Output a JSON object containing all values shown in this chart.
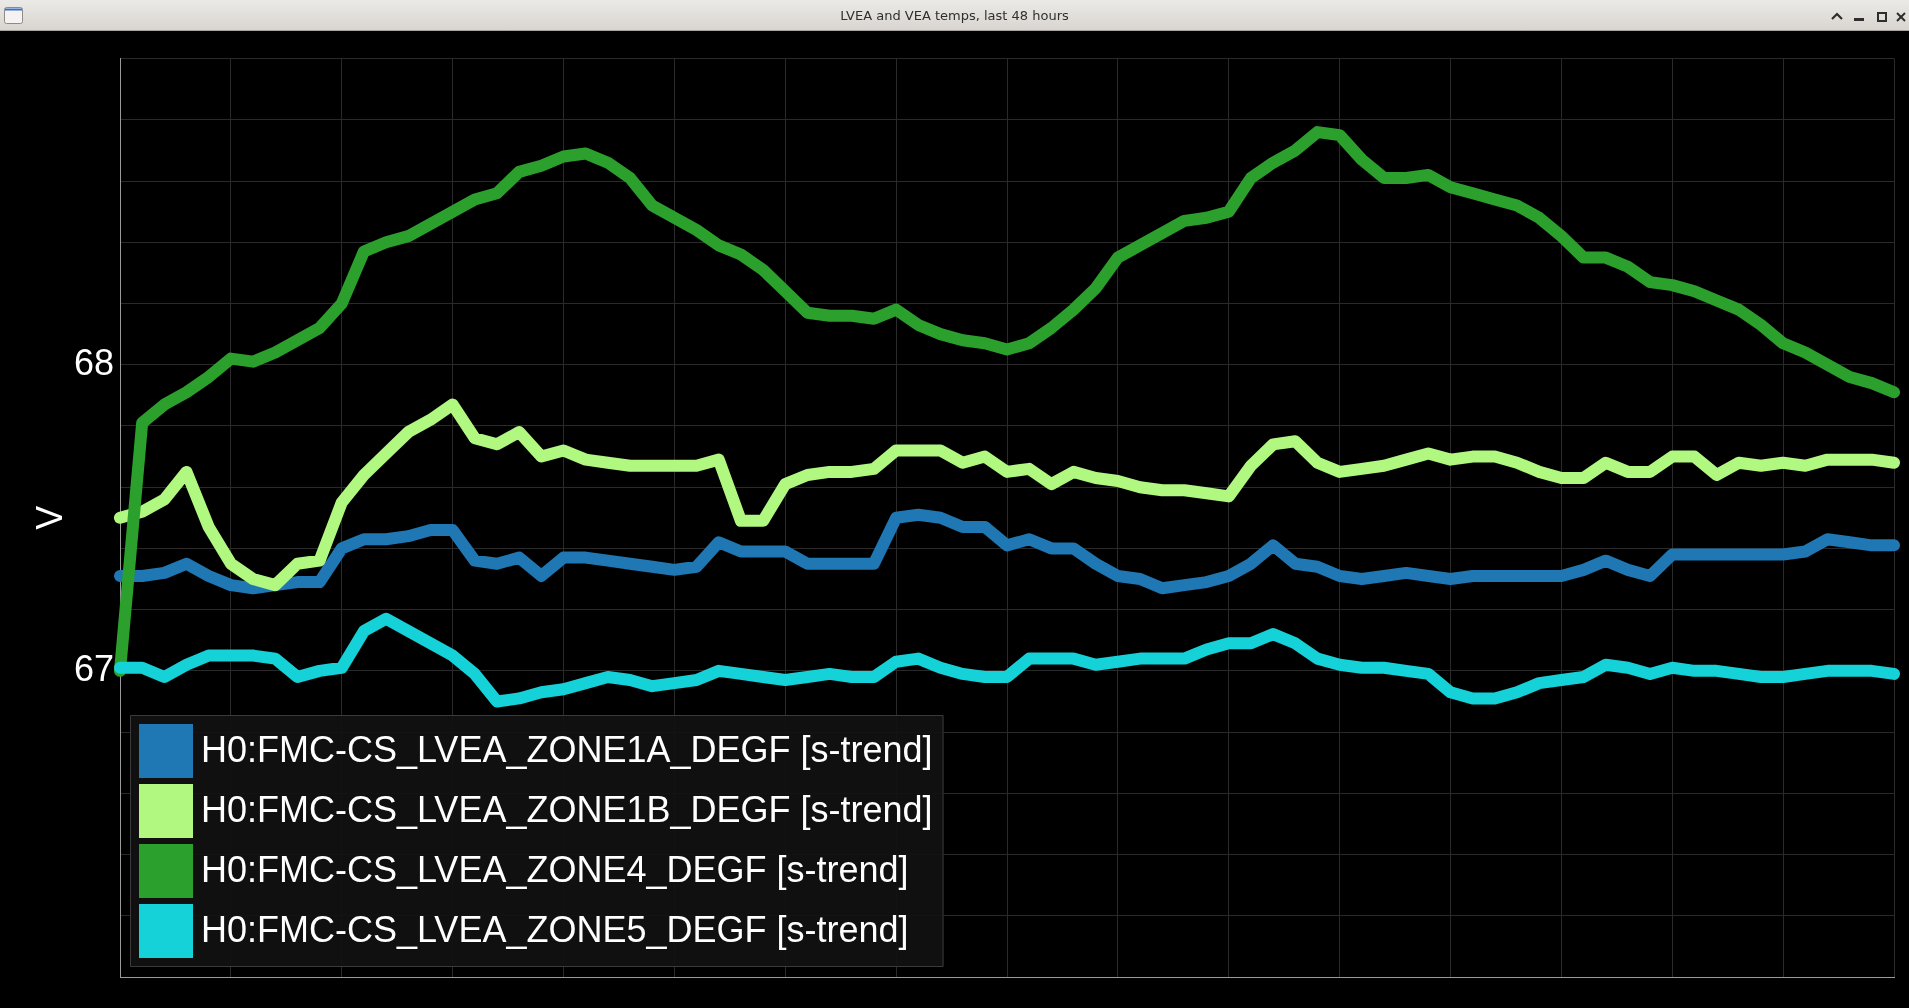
{
  "chart_data": {
    "type": "line",
    "title": "LVEA and VEA temps, last 48 hours",
    "ylabel": "V",
    "categories": [
      null,
      null,
      null,
      null,
      null,
      null,
      null,
      null,
      null,
      null,
      null,
      null,
      null,
      null,
      null,
      null,
      null,
      null,
      null,
      null,
      null,
      null,
      null,
      null,
      null,
      null,
      null,
      null,
      null,
      null,
      null,
      null,
      null,
      null,
      null,
      null,
      null,
      null,
      null,
      null,
      null,
      null,
      null,
      null,
      null,
      null,
      null,
      null,
      null,
      null,
      null,
      null,
      null,
      null,
      null,
      null,
      null,
      null,
      null,
      null,
      null,
      null,
      null,
      null,
      null,
      null,
      null,
      null,
      null,
      null,
      null,
      null,
      null,
      null,
      null,
      null,
      null,
      null,
      null,
      null,
      null
    ],
    "series": [
      {
        "name": "H0:FMC-CS_LVEA_ZONE1A_DEGF [s-trend]",
        "color": "#1f77b4",
        "values": [
          67.31,
          67.31,
          67.32,
          67.35,
          67.31,
          67.28,
          67.27,
          67.28,
          67.29,
          67.29,
          67.4,
          67.43,
          67.43,
          67.44,
          67.46,
          67.46,
          67.36,
          67.35,
          67.37,
          67.31,
          67.37,
          67.37,
          67.36,
          67.35,
          67.34,
          67.33,
          67.34,
          67.42,
          67.39,
          67.39,
          67.39,
          67.35,
          67.35,
          67.35,
          67.35,
          67.5,
          67.51,
          67.5,
          67.47,
          67.47,
          67.41,
          67.43,
          67.4,
          67.4,
          67.35,
          67.31,
          67.3,
          67.27,
          67.28,
          67.29,
          67.31,
          67.35,
          67.41,
          67.35,
          67.34,
          67.31,
          67.3,
          67.31,
          67.32,
          67.31,
          67.3,
          67.31,
          67.31,
          67.31,
          67.31,
          67.31,
          67.33,
          67.36,
          67.33,
          67.31,
          67.38,
          67.38,
          67.38,
          67.38,
          67.38,
          67.38,
          67.39,
          67.43,
          67.42,
          67.41,
          67.41
        ]
      },
      {
        "name": "H0:FMC-CS_LVEA_ZONE1B_DEGF [s-trend]",
        "color": "#b0f880",
        "values": [
          67.5,
          67.52,
          67.56,
          67.65,
          67.47,
          67.35,
          67.3,
          67.28,
          67.35,
          67.36,
          67.55,
          67.64,
          67.71,
          67.78,
          67.82,
          67.87,
          67.76,
          67.74,
          67.78,
          67.7,
          67.72,
          67.69,
          67.68,
          67.67,
          67.67,
          67.67,
          67.67,
          67.69,
          67.49,
          67.49,
          67.61,
          67.64,
          67.65,
          67.65,
          67.66,
          67.72,
          67.72,
          67.72,
          67.68,
          67.7,
          67.65,
          67.66,
          67.61,
          67.65,
          67.63,
          67.62,
          67.6,
          67.59,
          67.59,
          67.58,
          67.57,
          67.67,
          67.74,
          67.75,
          67.68,
          67.65,
          67.66,
          67.67,
          67.69,
          67.71,
          67.69,
          67.7,
          67.7,
          67.68,
          67.65,
          67.63,
          67.63,
          67.68,
          67.65,
          67.65,
          67.7,
          67.7,
          67.64,
          67.68,
          67.67,
          67.68,
          67.67,
          67.69,
          67.69,
          67.69,
          67.68
        ]
      },
      {
        "name": "H0:FMC-CS_LVEA_ZONE4_DEGF [s-trend]",
        "color": "#2ca02c",
        "values": [
          67.0,
          67.81,
          67.87,
          67.91,
          67.96,
          68.02,
          68.01,
          68.04,
          68.08,
          68.12,
          68.2,
          68.37,
          68.4,
          68.42,
          68.46,
          68.5,
          68.54,
          68.56,
          68.63,
          68.65,
          68.68,
          68.69,
          68.66,
          68.61,
          68.52,
          68.48,
          68.44,
          68.39,
          68.36,
          68.31,
          68.24,
          68.17,
          68.16,
          68.16,
          68.15,
          68.18,
          68.13,
          68.1,
          68.08,
          68.07,
          68.05,
          68.07,
          68.12,
          68.18,
          68.25,
          68.35,
          68.39,
          68.43,
          68.47,
          68.48,
          68.5,
          68.61,
          68.66,
          68.7,
          68.76,
          68.75,
          68.67,
          68.61,
          68.61,
          68.62,
          68.58,
          68.56,
          68.54,
          68.52,
          68.48,
          68.42,
          68.35,
          68.35,
          68.32,
          68.27,
          68.26,
          68.24,
          68.21,
          68.18,
          68.13,
          68.07,
          68.04,
          68.0,
          67.96,
          67.94,
          67.91
        ]
      },
      {
        "name": "H0:FMC-CS_LVEA_ZONE5_DEGF [s-trend]",
        "color": "#14d2d8",
        "values": [
          67.01,
          67.01,
          66.98,
          67.02,
          67.05,
          67.05,
          67.05,
          67.04,
          66.98,
          67.0,
          67.01,
          67.13,
          67.17,
          67.13,
          67.09,
          67.05,
          66.99,
          66.9,
          66.91,
          66.93,
          66.94,
          66.96,
          66.98,
          66.97,
          66.95,
          66.96,
          66.97,
          67.0,
          66.99,
          66.98,
          66.97,
          66.98,
          66.99,
          66.98,
          66.98,
          67.03,
          67.04,
          67.01,
          66.99,
          66.98,
          66.98,
          67.04,
          67.04,
          67.04,
          67.02,
          67.03,
          67.04,
          67.04,
          67.04,
          67.07,
          67.09,
          67.09,
          67.12,
          67.09,
          67.04,
          67.02,
          67.01,
          67.01,
          67.0,
          66.99,
          66.93,
          66.91,
          66.91,
          66.93,
          66.96,
          66.97,
          66.98,
          67.02,
          67.01,
          66.99,
          67.01,
          67.0,
          67.0,
          66.99,
          66.98,
          66.98,
          66.99,
          67.0,
          67.0,
          67.0,
          66.99
        ]
      }
    ],
    "ylim": [
      66,
      69
    ],
    "yticks": [
      {
        "value": 66,
        "label": null
      },
      {
        "value": 66.2,
        "label": null
      },
      {
        "value": 66.4,
        "label": null
      },
      {
        "value": 66.6,
        "label": null
      },
      {
        "value": 66.8,
        "label": null
      },
      67,
      {
        "value": 67.2,
        "label": null
      },
      {
        "value": 67.4,
        "label": null
      },
      {
        "value": 67.6,
        "label": null
      },
      {
        "value": 67.8,
        "label": null
      },
      68,
      {
        "value": 68.2,
        "label": null
      },
      {
        "value": 68.4,
        "label": null
      },
      {
        "value": 68.6,
        "label": null
      },
      {
        "value": 68.8,
        "label": null
      },
      {
        "value": 69,
        "label": null
      }
    ],
    "grid": true,
    "legend": "bottom left",
    "tick_labels": "y"
  }
}
